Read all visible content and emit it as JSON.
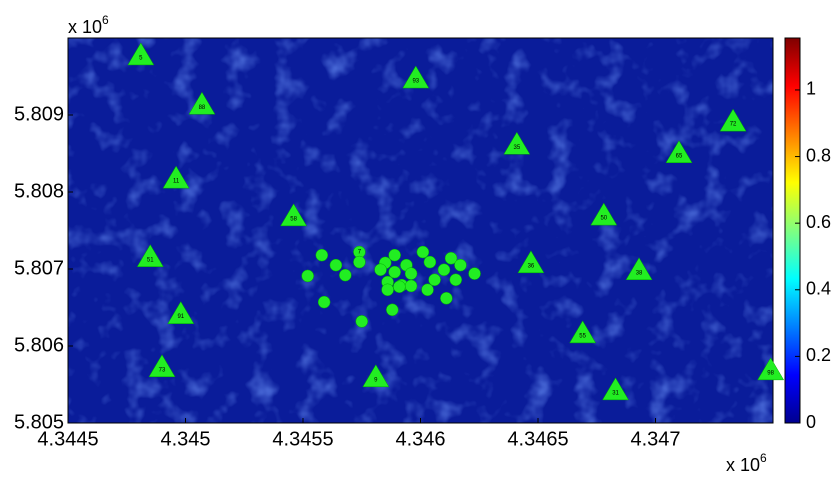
{
  "chart_data": {
    "type": "scatter",
    "x_exponent": "x 10",
    "x_exponent_power": "6",
    "y_exponent": "x 10",
    "y_exponent_power": "6",
    "xlim": [
      4.3445,
      4.3475
    ],
    "xticks": [
      4.3445,
      4.345,
      4.3455,
      4.346,
      4.3465,
      4.347
    ],
    "ylim": [
      5.805,
      5.81
    ],
    "yticks": [
      5.805,
      5.806,
      5.807,
      5.808,
      5.809
    ],
    "colorbar": {
      "clim": [
        0,
        1.156
      ],
      "ticks": [
        0,
        0.2,
        0.4,
        0.6,
        0.8,
        1
      ],
      "colormap": "jet"
    },
    "series": [
      {
        "marker": "triangle",
        "color": "#22ee22",
        "x": [
          4.34481,
          4.34507,
          4.34598,
          4.34641,
          4.34733,
          4.3471,
          4.34496,
          4.34546,
          4.34678,
          4.34485,
          4.34647,
          4.34693,
          4.34498,
          4.34669,
          4.3449,
          4.34581,
          4.34683,
          4.34749
        ],
        "y": [
          5.80978,
          5.80914,
          5.80948,
          5.80862,
          5.80892,
          5.80851,
          5.80818,
          5.80769,
          5.8077,
          5.80716,
          5.80708,
          5.80699,
          5.80642,
          5.80617,
          5.80573,
          5.8056,
          5.80543,
          5.80569
        ],
        "labels": [
          "5",
          "88",
          "93",
          "35",
          "72",
          "65",
          "11",
          "58",
          "50",
          "51",
          "36",
          "38",
          "91",
          "55",
          "73",
          "9",
          "31",
          "98"
        ]
      },
      {
        "marker": "circle",
        "color": "#22ee22",
        "x": [
          4.34558,
          4.34574,
          4.34589,
          4.34601,
          4.34613,
          4.34564,
          4.34574,
          4.34585,
          4.34594,
          4.34604,
          4.34617,
          4.34552,
          4.34568,
          4.34583,
          4.34589,
          4.34596,
          4.3461,
          4.34623,
          4.34586,
          4.34592,
          4.34606,
          4.34615,
          4.34586,
          4.34596,
          4.34591,
          4.34559,
          4.34603,
          4.34611,
          4.34588,
          4.34575
        ],
        "y": [
          5.80718,
          5.80722,
          5.80718,
          5.80722,
          5.80714,
          5.80705,
          5.80709,
          5.80708,
          5.80705,
          5.80709,
          5.80705,
          5.80691,
          5.80692,
          5.80699,
          5.80696,
          5.80694,
          5.80699,
          5.80694,
          5.80683,
          5.80679,
          5.80686,
          5.80686,
          5.80673,
          5.80678,
          5.80677,
          5.80657,
          5.80673,
          5.80662,
          5.80647,
          5.80632
        ],
        "labels": [
          null,
          "7",
          null,
          null,
          null,
          null,
          null,
          null,
          null,
          null,
          null,
          null,
          null,
          null,
          null,
          null,
          null,
          null,
          null,
          null,
          null,
          null,
          null,
          null,
          null,
          null,
          null,
          null,
          null,
          null
        ]
      }
    ]
  }
}
